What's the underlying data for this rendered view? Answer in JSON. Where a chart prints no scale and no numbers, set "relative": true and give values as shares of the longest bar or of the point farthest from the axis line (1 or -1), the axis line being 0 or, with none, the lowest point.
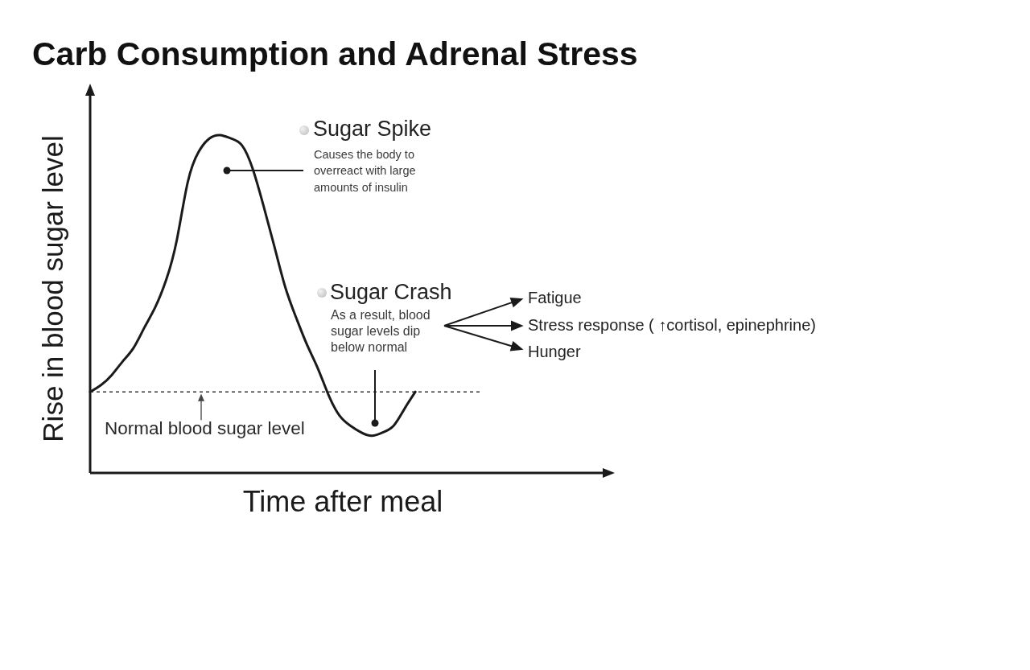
{
  "chart_data": {
    "type": "line",
    "title": "Carb Consumption and Adrenal Stress",
    "xlabel": "Time after meal",
    "ylabel": "Rise in blood sugar level",
    "relative": true,
    "marker": "none",
    "line_style": "solid",
    "color": "#1a1a1a",
    "categories": [
      null,
      null,
      null,
      null,
      null,
      null,
      null,
      null,
      null,
      null,
      null,
      null,
      null,
      null,
      null,
      null,
      null,
      null,
      null,
      null,
      null,
      null,
      null,
      null,
      null,
      null,
      null,
      null,
      null,
      null,
      null,
      null,
      null,
      null,
      null,
      null,
      null
    ],
    "values": [
      0.24,
      0.26,
      0.29,
      0.33,
      0.37,
      0.43,
      0.49,
      0.57,
      0.69,
      0.86,
      0.95,
      0.99,
      1,
      0.99,
      0.97,
      0.9,
      0.79,
      0.67,
      0.55,
      0.46,
      0.38,
      0.31,
      0.23,
      0.17,
      0.14,
      0.12,
      0.11,
      0.12,
      0.14,
      0.19,
      0.24,
      null,
      null,
      null,
      null,
      null,
      null
    ],
    "ref_lines": [
      {
        "axis": "y",
        "value": 0.24,
        "label": "Normal blood sugar level",
        "line_style": "dashed",
        "color": "#333333"
      }
    ],
    "annotations": [
      "Sugar Spike",
      "Causes the body to overreact with large amounts of insulin",
      "Sugar Crash",
      "As a result, blood sugar levels dip below normal",
      "Fatigue",
      "Stress response ( ↑cortisol, epinephrine)",
      "Hunger"
    ]
  }
}
